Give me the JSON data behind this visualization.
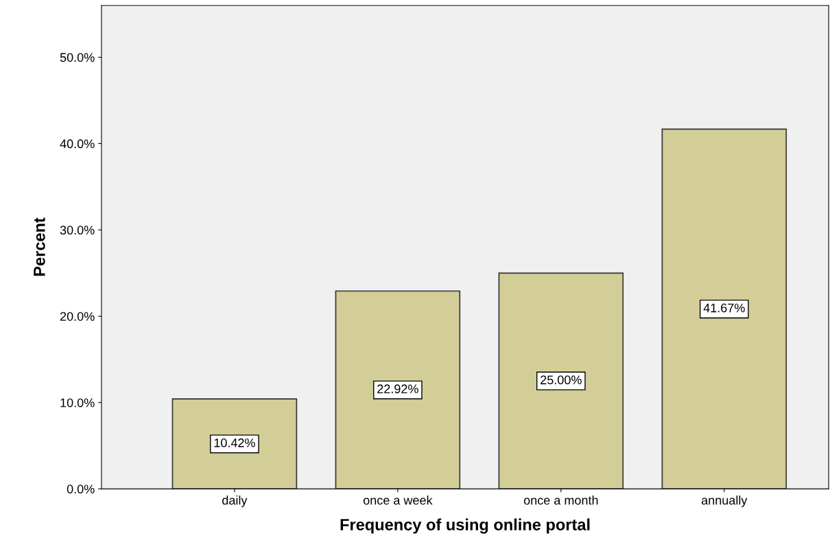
{
  "chart_data": {
    "type": "bar",
    "xlabel": "Frequency of using online portal",
    "ylabel": "Percent",
    "categories": [
      "daily",
      "once a week",
      "once a month",
      "annually"
    ],
    "values": [
      10.42,
      22.92,
      25.0,
      41.67
    ],
    "value_labels": [
      "10.42%",
      "22.92%",
      "25.00%",
      "41.67%"
    ],
    "color": "#d3ce97",
    "ylim": [
      0,
      56
    ],
    "yticks": [
      {
        "value": 0,
        "label": "0.0%"
      },
      {
        "value": 10,
        "label": "10.0%"
      },
      {
        "value": 20,
        "label": "20.0%"
      },
      {
        "value": 30,
        "label": "30.0%"
      },
      {
        "value": 40,
        "label": "40.0%"
      },
      {
        "value": 50,
        "label": "50.0%"
      }
    ],
    "grid": false,
    "legend": false
  }
}
